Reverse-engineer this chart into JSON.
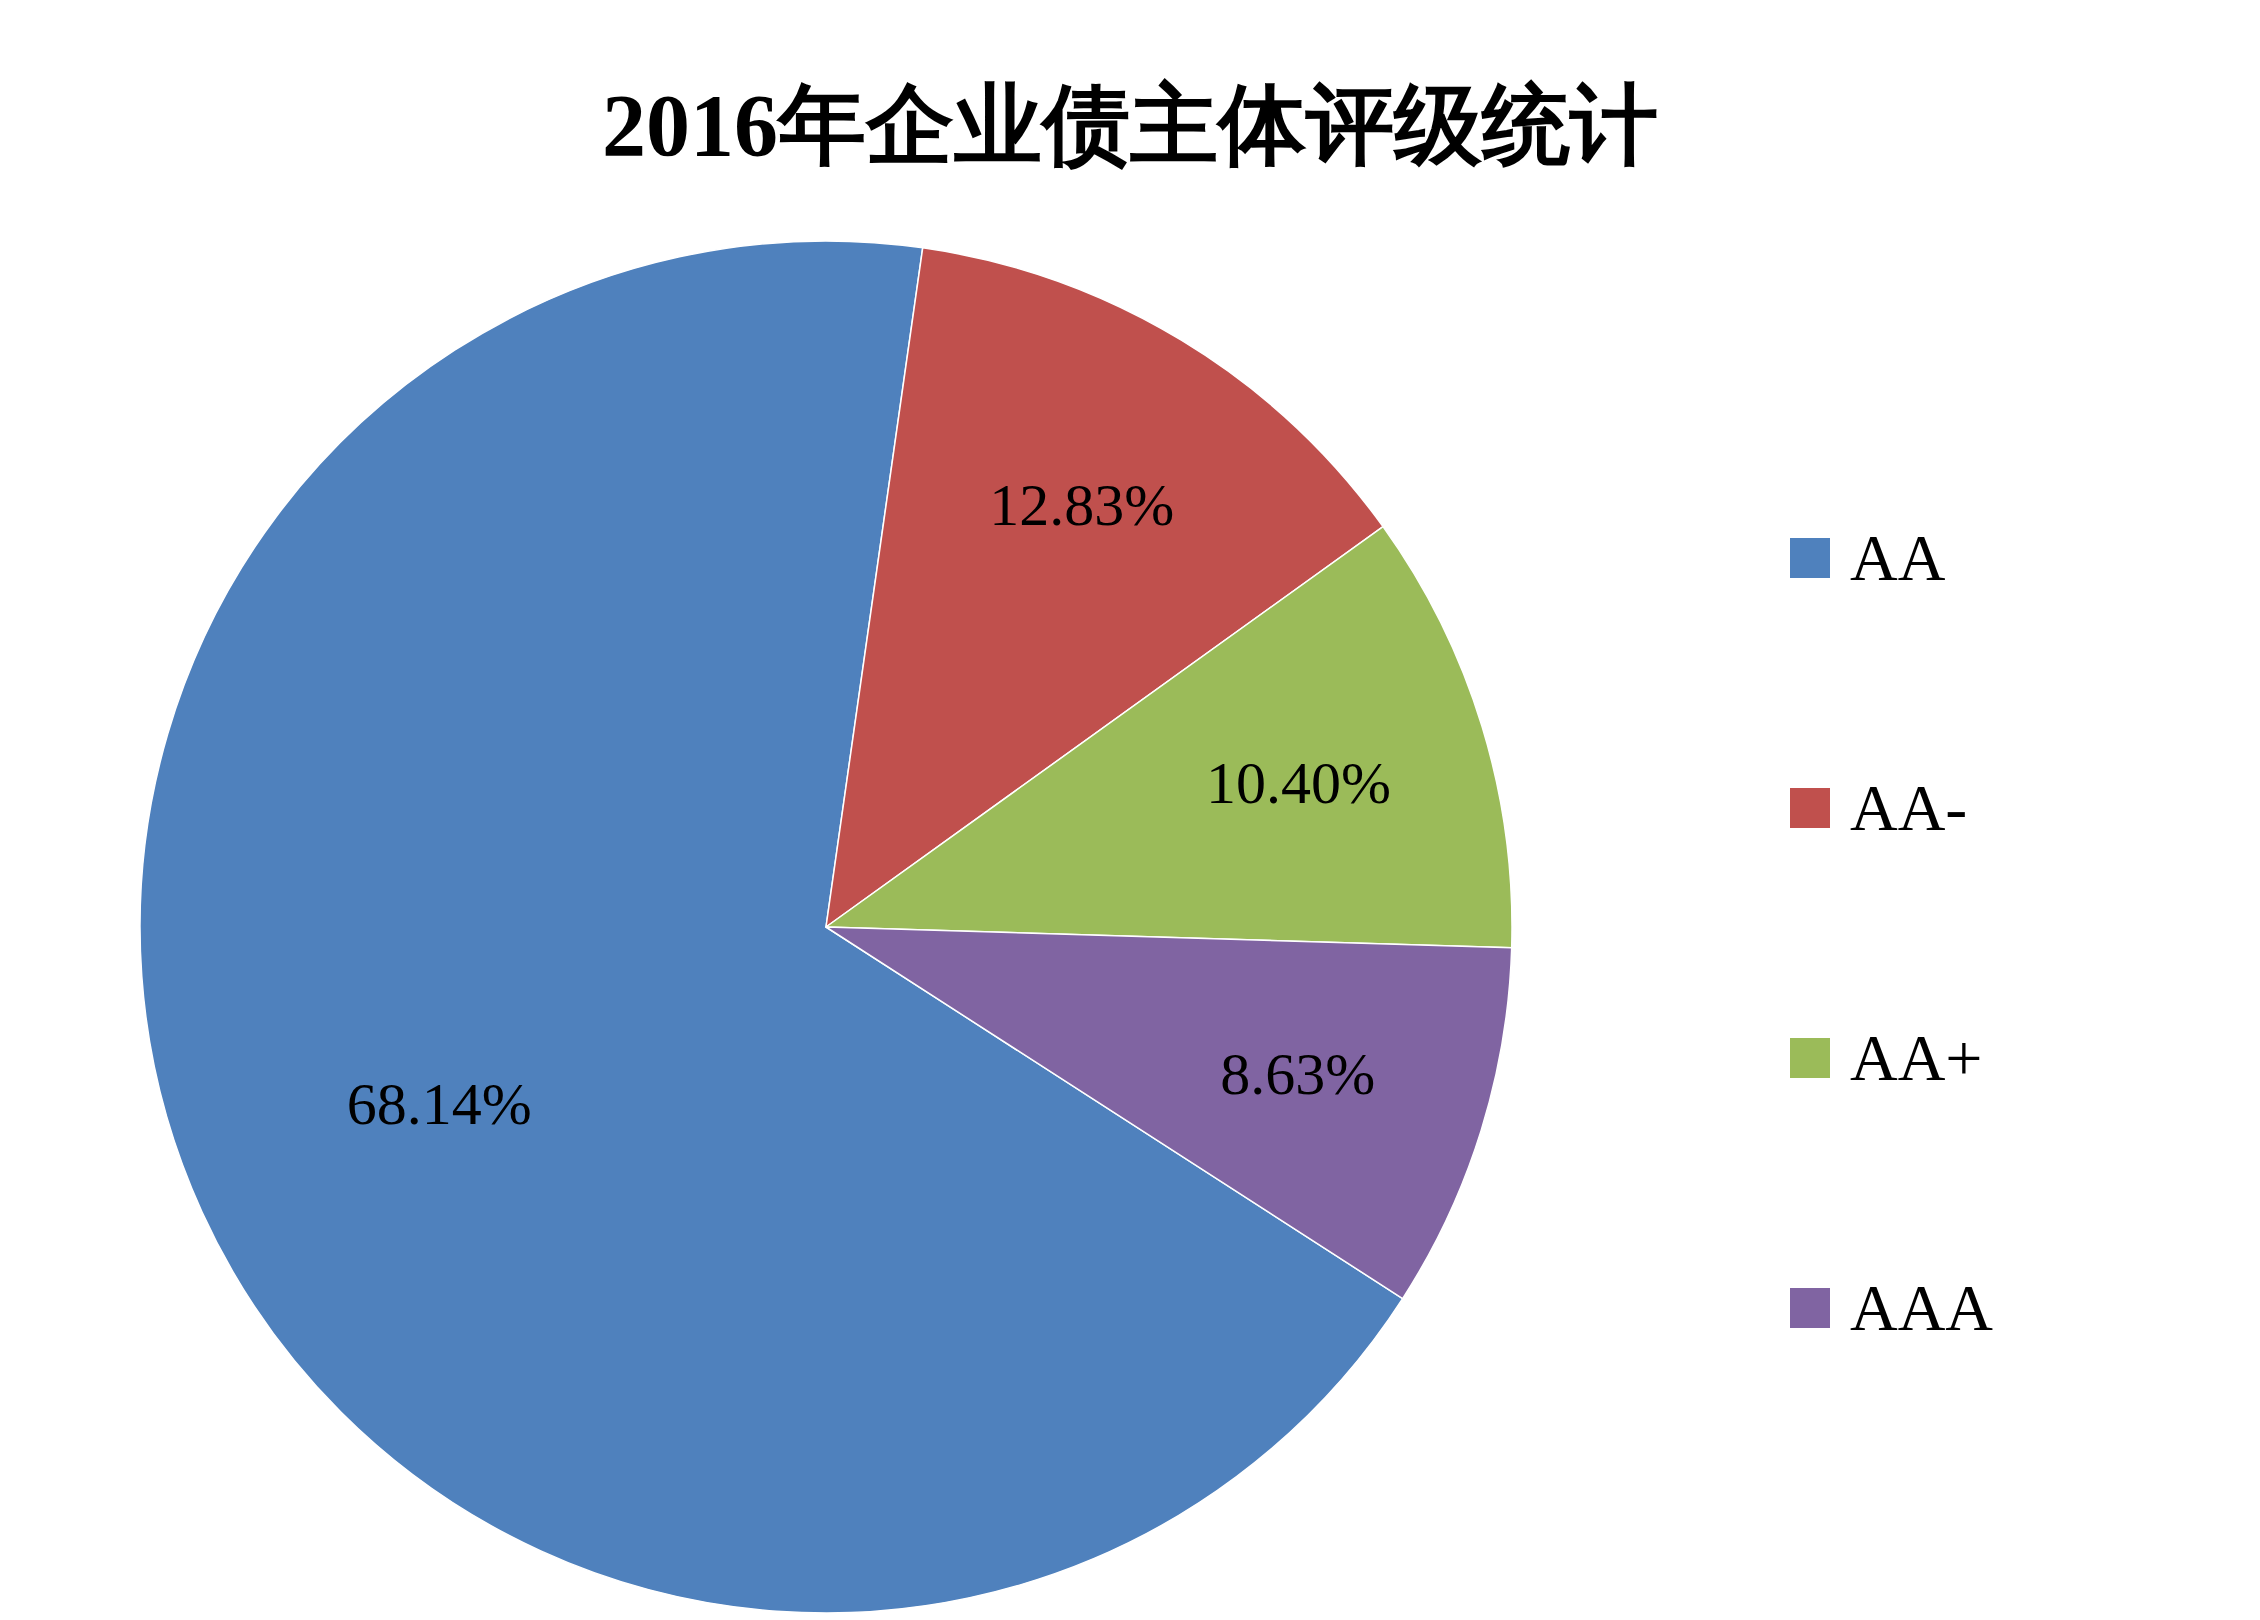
{
  "chart_data": {
    "type": "pie",
    "title": "2016年企业债主体评级统计",
    "categories": [
      "AA",
      "AA-",
      "AA+",
      "AAA"
    ],
    "values": [
      68.14,
      12.83,
      10.4,
      8.63
    ],
    "value_labels": [
      "68.14%",
      "12.83%",
      "10.40%",
      "8.63%"
    ],
    "colors": [
      "#4f81bd",
      "#c0504d",
      "#9bbb59",
      "#8064a2"
    ],
    "legend": "right"
  }
}
